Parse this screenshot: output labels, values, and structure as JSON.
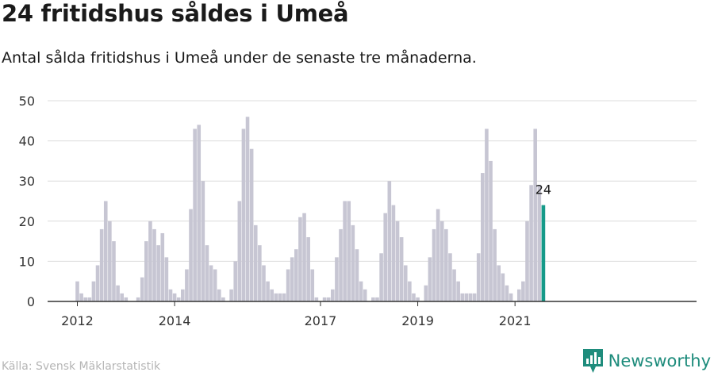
{
  "title": "24 fritidshus såldes i Umeå",
  "subtitle": "Antal sålda fritidshus i Umeå under de senaste tre månaderna.",
  "source": "Källa: Svensk Mäklarstatistik",
  "brand": {
    "name": "Newsworthy",
    "icon": "newsworthy-logo-icon"
  },
  "colors": {
    "bar": "#c7c6d3",
    "highlight": "#159a89",
    "grid": "#dcdcdc",
    "axis": "#333333",
    "brand": "#1e8c7c"
  },
  "chart_data": {
    "type": "bar",
    "ylim": [
      0,
      50
    ],
    "yticks": [
      0,
      10,
      20,
      30,
      40,
      50
    ],
    "grid": true,
    "x_tick_labels": [
      {
        "label": "2012",
        "month": 1
      },
      {
        "label": "2014",
        "month": 25
      },
      {
        "label": "2017",
        "month": 61
      },
      {
        "label": "2019",
        "month": 85
      },
      {
        "label": "2021",
        "month": 109
      }
    ],
    "values": [
      5,
      2,
      1,
      1,
      5,
      9,
      18,
      25,
      20,
      15,
      4,
      2,
      1,
      0,
      0,
      1,
      6,
      15,
      20,
      18,
      14,
      17,
      11,
      3,
      2,
      1,
      3,
      8,
      23,
      43,
      44,
      30,
      14,
      9,
      8,
      3,
      1,
      0,
      3,
      10,
      25,
      43,
      46,
      38,
      19,
      14,
      9,
      5,
      3,
      2,
      2,
      2,
      8,
      11,
      13,
      21,
      22,
      16,
      8,
      1,
      0,
      1,
      1,
      3,
      11,
      18,
      25,
      25,
      19,
      13,
      5,
      3,
      0,
      1,
      1,
      12,
      22,
      30,
      24,
      20,
      16,
      9,
      5,
      2,
      1,
      0,
      4,
      11,
      18,
      23,
      20,
      18,
      12,
      8,
      5,
      2,
      2,
      2,
      2,
      12,
      32,
      43,
      35,
      18,
      9,
      7,
      4,
      2,
      0,
      3,
      5,
      20,
      29,
      43,
      29,
      24
    ],
    "highlight_index": 115,
    "highlight_label": "24"
  }
}
